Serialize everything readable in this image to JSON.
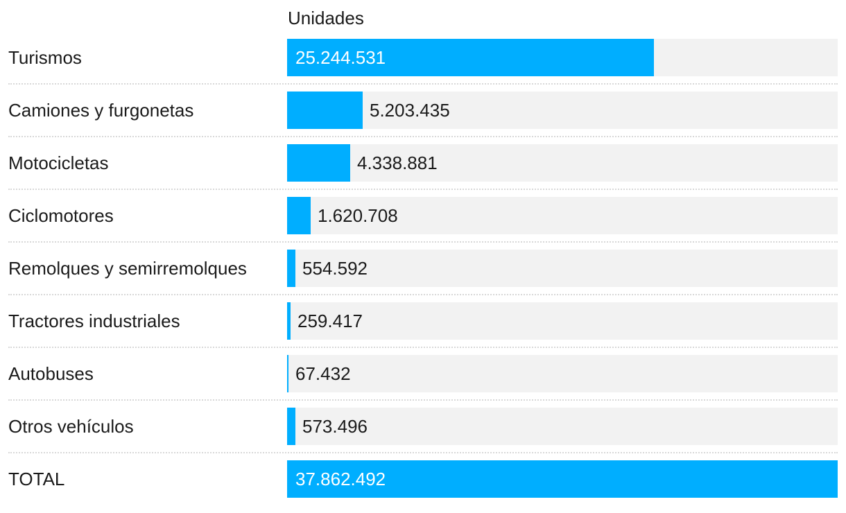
{
  "chart_data": {
    "type": "bar",
    "orientation": "horizontal",
    "column_header": "Unidades",
    "bar_color": "#00aeff",
    "track_color": "#f2f2f2",
    "max_value": 37862492,
    "rows": [
      {
        "label": "Turismos",
        "value": 25244531,
        "value_label": "25.244.531"
      },
      {
        "label": "Camiones y furgonetas",
        "value": 5203435,
        "value_label": "5.203.435"
      },
      {
        "label": "Motocicletas",
        "value": 4338881,
        "value_label": "4.338.881"
      },
      {
        "label": "Ciclomotores",
        "value": 1620708,
        "value_label": "1.620.708"
      },
      {
        "label": "Remolques y semirremolques",
        "value": 554592,
        "value_label": "554.592"
      },
      {
        "label": "Tractores industriales",
        "value": 259417,
        "value_label": "259.417"
      },
      {
        "label": "Autobuses",
        "value": 67432,
        "value_label": "67.432"
      },
      {
        "label": "Otros vehículos",
        "value": 573496,
        "value_label": "573.496"
      },
      {
        "label": "TOTAL",
        "value": 37862492,
        "value_label": "37.862.492"
      }
    ]
  }
}
